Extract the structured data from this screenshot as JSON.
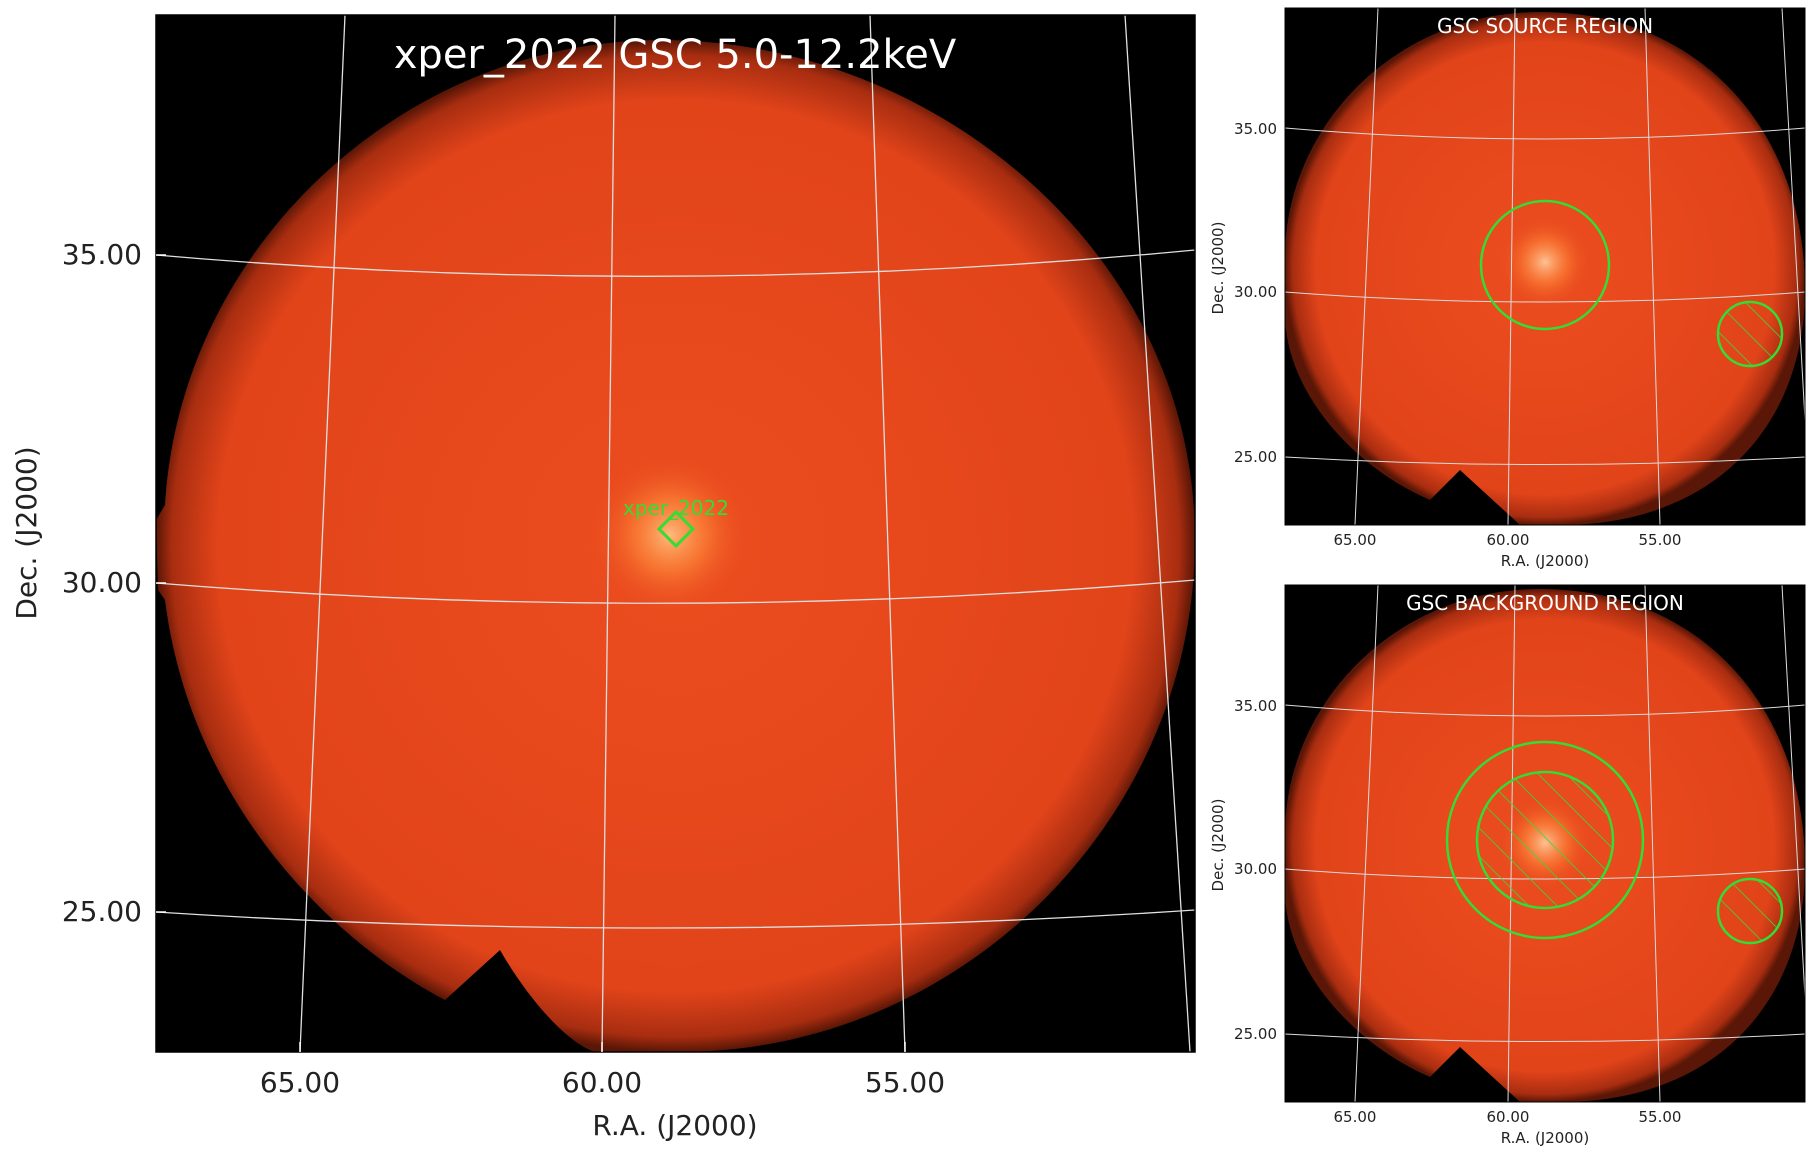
{
  "main": {
    "title": "xper_2022 GSC 5.0-12.2keV",
    "xlabel": "R.A. (J2000)",
    "ylabel": "Dec. (J2000)",
    "xticks": [
      "65.00",
      "60.00",
      "55.00"
    ],
    "yticks": [
      "35.00",
      "30.00",
      "25.00"
    ],
    "source_label": "xper_2022"
  },
  "source_panel": {
    "title": "GSC SOURCE REGION",
    "xlabel": "R.A. (J2000)",
    "ylabel": "Dec. (J2000)",
    "xticks": [
      "65.00",
      "60.00",
      "55.00"
    ],
    "yticks": [
      "35.00",
      "30.00",
      "25.00"
    ]
  },
  "background_panel": {
    "title": "GSC BACKGROUND REGION",
    "xlabel": "R.A. (J2000)",
    "ylabel": "Dec. (J2000)",
    "xticks": [
      "65.00",
      "60.00",
      "55.00"
    ],
    "yticks": [
      "35.00",
      "30.00",
      "25.00"
    ]
  },
  "colors": {
    "image_fill": "#e6461c",
    "sky_background": "#000000",
    "region": "#33dd33",
    "grid": "#dddddd",
    "source_glow": "#ffb060"
  }
}
